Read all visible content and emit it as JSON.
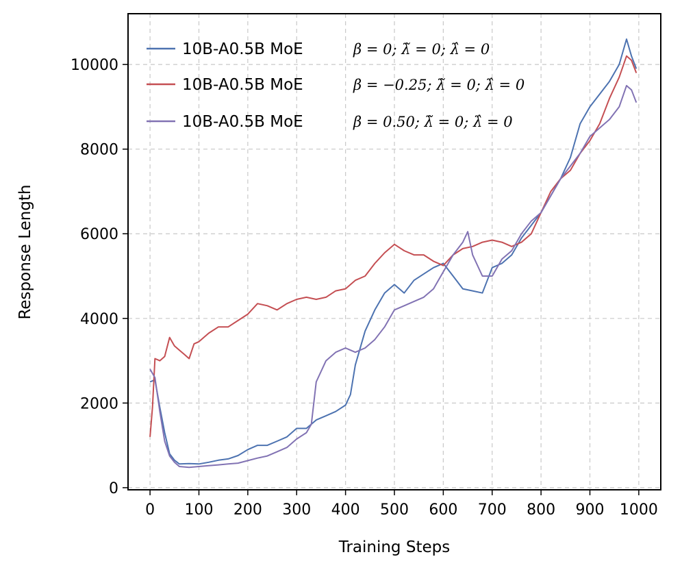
{
  "chart_data": {
    "type": "line",
    "title": "",
    "xlabel": "Training Steps",
    "ylabel": "Response Length",
    "xlim": [
      -45,
      1045
    ],
    "ylim": [
      -50,
      11200
    ],
    "xticks": [
      0,
      100,
      200,
      300,
      400,
      500,
      600,
      700,
      800,
      900,
      1000
    ],
    "xtick_labels": [
      "0",
      "100",
      "200",
      "300",
      "400",
      "500",
      "600",
      "700",
      "800",
      "900",
      "1000"
    ],
    "yticks": [
      0,
      2000,
      4000,
      6000,
      8000,
      10000
    ],
    "ytick_labels": [
      "0",
      "2000",
      "4000",
      "6000",
      "8000",
      "10000"
    ],
    "grid": true,
    "legend_position": "top-left",
    "series": [
      {
        "name": "10B-A0.5B MoE",
        "math": "β = 0;  λ̃ = 0;  λ̂ = 0",
        "color": "#4c72b0",
        "x": [
          0,
          10,
          20,
          30,
          40,
          50,
          60,
          80,
          100,
          120,
          140,
          160,
          180,
          200,
          220,
          240,
          260,
          280,
          300,
          320,
          340,
          360,
          380,
          400,
          410,
          420,
          440,
          460,
          480,
          500,
          520,
          540,
          560,
          580,
          600,
          620,
          640,
          660,
          680,
          700,
          720,
          740,
          760,
          780,
          800,
          820,
          840,
          860,
          880,
          900,
          920,
          940,
          960,
          975,
          985,
          995
        ],
        "y": [
          2500,
          2550,
          1900,
          1300,
          800,
          650,
          560,
          570,
          560,
          600,
          650,
          680,
          760,
          900,
          1000,
          1000,
          1100,
          1200,
          1400,
          1400,
          1600,
          1700,
          1800,
          1950,
          2200,
          2900,
          3700,
          4200,
          4600,
          4800,
          4600,
          4900,
          5050,
          5200,
          5300,
          5000,
          4700,
          4650,
          4600,
          5200,
          5300,
          5500,
          5900,
          6200,
          6500,
          6900,
          7300,
          7800,
          8600,
          9000,
          9300,
          9600,
          10000,
          10600,
          10200,
          9900
        ]
      },
      {
        "name": "10B-A0.5B MoE",
        "math": "β = −0.25;  λ̃ = 0;  λ̂ = 0",
        "color": "#c44e52",
        "x": [
          0,
          5,
          10,
          20,
          30,
          40,
          50,
          60,
          70,
          80,
          90,
          100,
          120,
          140,
          160,
          180,
          200,
          220,
          240,
          260,
          280,
          300,
          320,
          340,
          360,
          380,
          400,
          420,
          440,
          460,
          480,
          500,
          520,
          540,
          560,
          580,
          600,
          620,
          640,
          660,
          680,
          700,
          720,
          740,
          760,
          780,
          800,
          820,
          840,
          860,
          880,
          900,
          920,
          940,
          960,
          975,
          985,
          995
        ],
        "y": [
          1200,
          1900,
          3050,
          3000,
          3100,
          3550,
          3350,
          3250,
          3150,
          3050,
          3400,
          3450,
          3650,
          3800,
          3800,
          3950,
          4100,
          4350,
          4300,
          4200,
          4350,
          4450,
          4500,
          4450,
          4500,
          4650,
          4700,
          4900,
          5000,
          5300,
          5550,
          5750,
          5600,
          5500,
          5500,
          5350,
          5250,
          5500,
          5650,
          5700,
          5800,
          5850,
          5800,
          5700,
          5800,
          6000,
          6500,
          7000,
          7300,
          7500,
          7900,
          8200,
          8600,
          9200,
          9700,
          10200,
          10100,
          9800
        ]
      },
      {
        "name": "10B-A0.5B MoE",
        "math": "β = 0.50;  λ̃ = 0;  λ̂ = 0",
        "color": "#8172b3",
        "x": [
          0,
          10,
          20,
          30,
          40,
          50,
          60,
          80,
          100,
          120,
          140,
          160,
          180,
          200,
          220,
          240,
          260,
          280,
          300,
          320,
          330,
          340,
          360,
          380,
          400,
          420,
          440,
          460,
          480,
          500,
          520,
          540,
          560,
          580,
          600,
          620,
          640,
          650,
          660,
          680,
          700,
          720,
          740,
          760,
          780,
          800,
          820,
          840,
          860,
          880,
          900,
          920,
          940,
          960,
          975,
          985,
          995
        ],
        "y": [
          2800,
          2600,
          1800,
          1100,
          750,
          600,
          500,
          480,
          500,
          520,
          540,
          560,
          580,
          640,
          700,
          750,
          850,
          950,
          1150,
          1300,
          1500,
          2500,
          3000,
          3200,
          3300,
          3200,
          3300,
          3500,
          3800,
          4200,
          4300,
          4400,
          4500,
          4700,
          5100,
          5500,
          5800,
          6050,
          5500,
          5000,
          5000,
          5400,
          5600,
          6000,
          6300,
          6500,
          6900,
          7300,
          7600,
          7900,
          8300,
          8500,
          8700,
          9000,
          9500,
          9400,
          9100
        ]
      }
    ]
  }
}
